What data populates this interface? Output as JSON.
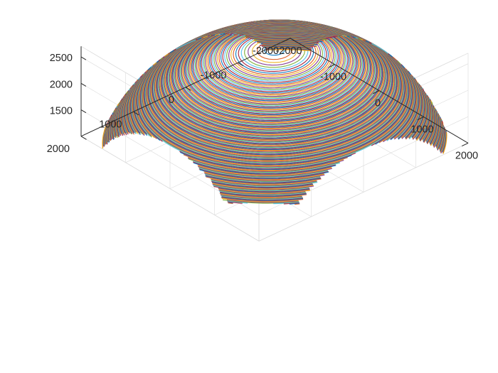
{
  "figure": {
    "background": "#ffffff"
  },
  "chart_data": {
    "type": "surface",
    "title": "",
    "xlabel": "",
    "ylabel": "",
    "zlabel": "",
    "grid": true,
    "xlim": [
      -2000,
      2000
    ],
    "ylim": [
      -2000,
      2000
    ],
    "zlim": [
      1000,
      2700
    ],
    "x_ticks": [
      {
        "value": -2000,
        "label": "-2000"
      },
      {
        "value": -1000,
        "label": "-1000"
      },
      {
        "value": 0,
        "label": "0"
      },
      {
        "value": 1000,
        "label": "1000"
      },
      {
        "value": 2000,
        "label": "2000"
      }
    ],
    "y_ticks": [
      {
        "value": -2000,
        "label": "-2000"
      },
      {
        "value": -1000,
        "label": "-1000"
      },
      {
        "value": 0,
        "label": "0"
      },
      {
        "value": 1000,
        "label": "1000"
      },
      {
        "value": 2000,
        "label": "2000"
      }
    ],
    "z_ticks": [
      {
        "value": 1500,
        "label": "1500"
      },
      {
        "value": 2000,
        "label": "2000"
      },
      {
        "value": 2500,
        "label": "2500"
      }
    ],
    "surface": {
      "shape": "spherical dome clipped by a square base with semicircular arches cut into each side",
      "sphere_center": [
        0,
        0,
        0
      ],
      "sphere_radius": 2700,
      "base_half_width": 2000,
      "arch_radius": 1200,
      "apex_z": 2700
    },
    "line_colors": [
      "#0072bd",
      "#d95319",
      "#edb120",
      "#7e2f8e",
      "#77ac30",
      "#4dbeee",
      "#a2142f"
    ]
  }
}
